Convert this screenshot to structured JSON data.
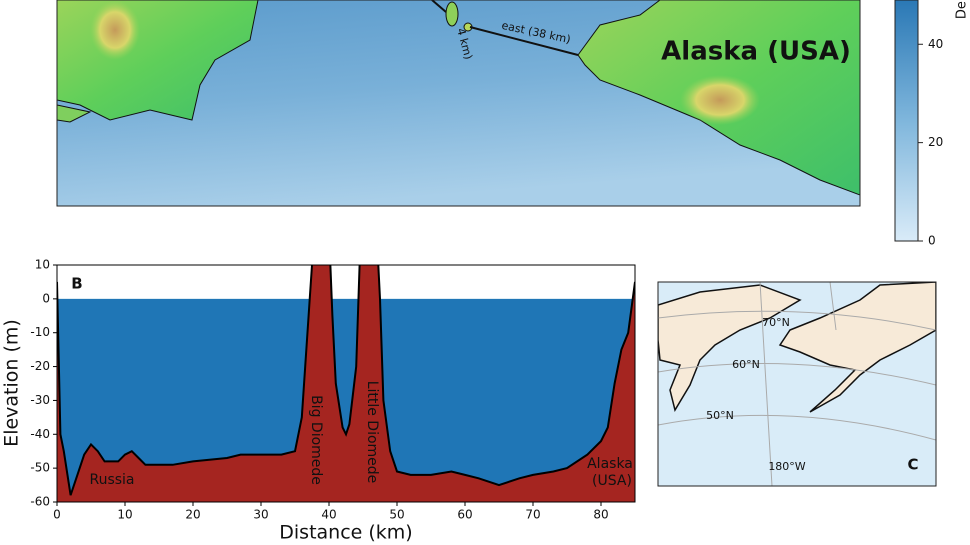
{
  "map": {
    "region_label": "Alaska (USA)",
    "route_east": "east (38 km)",
    "route_west": "4 km)"
  },
  "colorbar": {
    "label": "Dep",
    "lim": [
      0,
      49
    ],
    "ticks": [
      0,
      20,
      40
    ]
  },
  "chart_data": {
    "type": "area",
    "panel_label": "B",
    "xlabel": "Distance (km)",
    "ylabel": "Elevation (m)",
    "x": [
      0,
      0.5,
      1,
      2,
      3,
      4,
      5,
      6,
      7,
      9,
      10,
      11,
      12,
      13,
      15,
      17,
      20,
      25,
      27,
      30,
      33,
      35,
      36,
      36.5,
      37,
      37.5,
      38,
      40,
      40.5,
      41,
      42,
      42.5,
      43,
      44,
      44.5,
      45,
      47,
      47.5,
      48,
      49,
      50,
      52,
      55,
      58,
      60,
      62,
      65,
      68,
      70,
      73,
      75,
      78,
      80,
      81,
      82,
      83,
      84,
      85
    ],
    "values": [
      5,
      -40,
      -45,
      -58,
      -52,
      -46,
      -43,
      -45,
      -48,
      -48,
      -46,
      -45,
      -47,
      -49,
      -49,
      -49,
      -48,
      -47,
      -46,
      -46,
      -46,
      -45,
      -35,
      -20,
      -5,
      10,
      20,
      20,
      -5,
      -25,
      -38,
      -40,
      -37,
      -20,
      10,
      20,
      20,
      0,
      -30,
      -45,
      -51,
      -52,
      -52,
      -51,
      -52,
      -53,
      -55,
      -53,
      -52,
      -51,
      -50,
      -46,
      -42,
      -38,
      -25,
      -15,
      -10,
      5
    ],
    "color": "#a52520",
    "sea_level": 0,
    "sea_color": "#1f76b6",
    "xlim": [
      0,
      85
    ],
    "xticks": [
      0,
      10,
      20,
      30,
      40,
      50,
      60,
      70,
      80
    ],
    "ylim": [
      -60,
      10
    ],
    "yticks": [
      -60,
      -50,
      -40,
      -30,
      -20,
      -10,
      0,
      10
    ],
    "annotations": [
      "Russia",
      "Big Diomede",
      "Little Diomede",
      "Alaska",
      "(USA)"
    ]
  },
  "inset": {
    "panel_label": "C",
    "lat_labels": [
      "70°N",
      "60°N",
      "50°N"
    ],
    "lon_label": "180°W"
  }
}
